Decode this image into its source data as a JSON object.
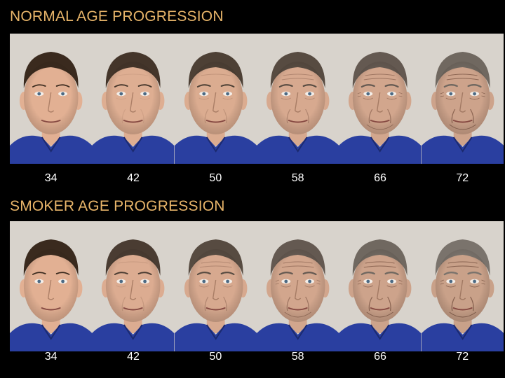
{
  "colors": {
    "background": "#000000",
    "title": "#e8b56a",
    "age_label": "#ffffff",
    "wall": "#d8d3cc",
    "shirt": "#2a3fa0",
    "hair_young": "#3a2a1e",
    "hair_old": "#7a736c",
    "skin_young": "#e2b093",
    "skin_old": "#c9a189"
  },
  "sections": [
    {
      "id": "normal",
      "title": "NORMAL AGE PROGRESSION",
      "photos": [
        {
          "age": "34",
          "aging": 0.0
        },
        {
          "age": "42",
          "aging": 0.15
        },
        {
          "age": "50",
          "aging": 0.3
        },
        {
          "age": "58",
          "aging": 0.45
        },
        {
          "age": "66",
          "aging": 0.65
        },
        {
          "age": "72",
          "aging": 0.85
        }
      ]
    },
    {
      "id": "smoker",
      "title": "SMOKER AGE PROGRESSION",
      "photos": [
        {
          "age": "34",
          "aging": 0.0
        },
        {
          "age": "42",
          "aging": 0.25
        },
        {
          "age": "50",
          "aging": 0.45
        },
        {
          "age": "58",
          "aging": 0.65
        },
        {
          "age": "66",
          "aging": 0.85
        },
        {
          "age": "72",
          "aging": 1.0
        }
      ]
    }
  ]
}
